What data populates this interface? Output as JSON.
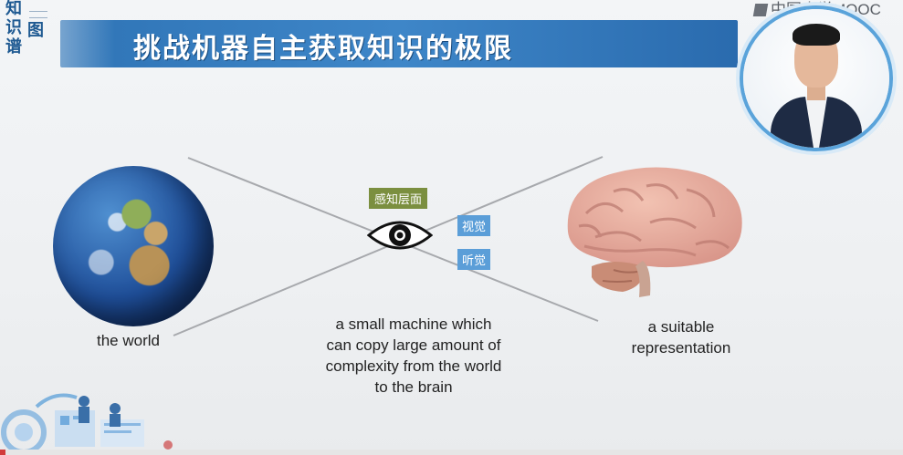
{
  "logo": {
    "chars": [
      "知",
      "识",
      "图",
      "谱"
    ]
  },
  "title": "挑战机器自主获取知识的极限",
  "watermark": "中国大学MOOC",
  "globe": {
    "label": "the world"
  },
  "perception": {
    "header": "感知层面",
    "vision": "视觉",
    "hearing": "听觉"
  },
  "machine": {
    "line1": "a small machine which",
    "line2": "can copy large amount of",
    "line3": "complexity from the world",
    "line4": "to the brain"
  },
  "brain": {
    "line1": "a suitable",
    "line2": "representation"
  },
  "colors": {
    "banner": "#2f74b6",
    "green_tag": "#7b8f3f",
    "blue_tag": "#5b9ed8",
    "accent_ring": "#5aa3da"
  }
}
